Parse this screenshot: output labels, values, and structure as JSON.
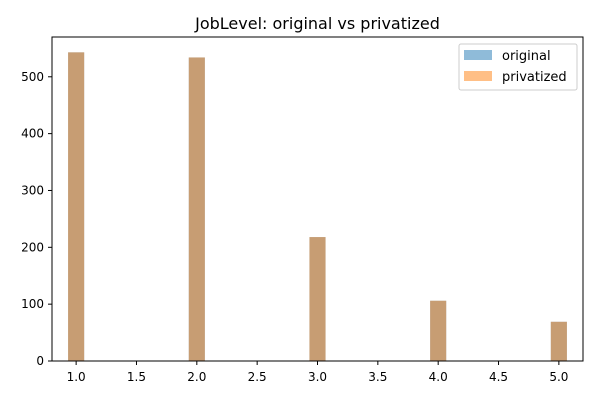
{
  "chart_data": {
    "type": "bar",
    "title": "JobLevel: original vs privatized",
    "xlabel": "",
    "ylabel": "",
    "x": [
      1,
      2,
      3,
      4,
      5
    ],
    "series": [
      {
        "name": "original",
        "values": [
          543,
          534,
          218,
          106,
          69
        ],
        "color": "#1f77b4",
        "opacity": 0.5
      },
      {
        "name": "privatized",
        "values": [
          543,
          534,
          218,
          106,
          69
        ],
        "color": "#ff7f0e",
        "opacity": 0.5
      }
    ],
    "xlim": [
      0.8,
      5.2
    ],
    "ylim": [
      0,
      570
    ],
    "bar_width": 0.13333,
    "x_ticks": [
      1.0,
      1.5,
      2.0,
      2.5,
      3.0,
      3.5,
      4.0,
      4.5,
      5.0
    ],
    "x_tick_labels": [
      "1.0",
      "1.5",
      "2.0",
      "2.5",
      "3.0",
      "3.5",
      "4.0",
      "4.5",
      "5.0"
    ],
    "y_ticks": [
      0,
      100,
      200,
      300,
      400,
      500
    ],
    "y_tick_labels": [
      "0",
      "100",
      "200",
      "300",
      "400",
      "500"
    ],
    "grid": false,
    "legend_position": "top-right"
  }
}
